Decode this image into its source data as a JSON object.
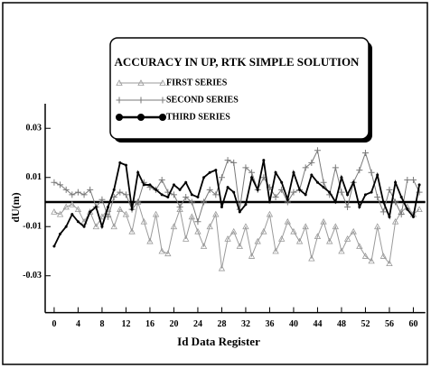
{
  "chart_data": {
    "type": "line",
    "title": "ACCURACY IN UP, RTK SIMPLE SOLUTION",
    "x_label": "Id Data Register",
    "y_label": "dU(m)",
    "x": [
      0,
      1,
      2,
      3,
      4,
      5,
      6,
      7,
      8,
      9,
      10,
      11,
      12,
      13,
      14,
      15,
      16,
      17,
      18,
      19,
      20,
      21,
      22,
      23,
      24,
      25,
      26,
      27,
      28,
      29,
      30,
      31,
      32,
      33,
      34,
      35,
      36,
      37,
      38,
      39,
      40,
      41,
      42,
      43,
      44,
      45,
      46,
      47,
      48,
      49,
      50,
      51,
      52,
      53,
      54,
      55,
      56,
      57,
      58,
      59,
      60,
      61
    ],
    "xlim": [
      -1.5,
      62
    ],
    "xticks": [
      0,
      4,
      8,
      12,
      16,
      20,
      24,
      28,
      32,
      36,
      40,
      44,
      48,
      52,
      56,
      60
    ],
    "ylim": [
      -0.045,
      0.04
    ],
    "yticks": [
      0.03,
      0.01,
      -0.01,
      -0.03
    ],
    "zero_line": true,
    "series": [
      {
        "name": "FIRST SERIES",
        "color": "#9a9a9a",
        "marker": "triangle",
        "values": [
          -0.004,
          -0.005,
          -0.002,
          -0.001,
          -0.003,
          -0.008,
          -0.004,
          -0.01,
          -0.006,
          -0.003,
          -0.01,
          -0.003,
          -0.005,
          -0.012,
          0.0,
          -0.008,
          -0.016,
          -0.005,
          -0.02,
          -0.021,
          -0.01,
          -0.003,
          -0.015,
          -0.006,
          -0.012,
          -0.018,
          -0.01,
          -0.005,
          -0.027,
          -0.015,
          -0.012,
          -0.018,
          -0.01,
          -0.022,
          -0.016,
          -0.012,
          -0.005,
          -0.02,
          -0.015,
          -0.008,
          -0.012,
          -0.016,
          -0.01,
          -0.023,
          -0.014,
          -0.008,
          -0.016,
          -0.01,
          -0.02,
          -0.015,
          -0.012,
          -0.018,
          -0.022,
          -0.024,
          -0.01,
          -0.022,
          -0.025,
          -0.008,
          -0.004,
          -0.002,
          -0.005,
          -0.003
        ]
      },
      {
        "name": "SECOND SERIES",
        "color": "#7a7a7a",
        "marker": "plus",
        "values": [
          0.008,
          0.007,
          0.005,
          0.003,
          0.004,
          0.003,
          0.005,
          -0.002,
          0.001,
          -0.006,
          0.002,
          0.004,
          0.003,
          -0.003,
          0.0,
          0.008,
          0.006,
          0.005,
          0.009,
          0.004,
          0.003,
          -0.002,
          0.002,
          0.0,
          -0.008,
          0.0,
          0.005,
          0.003,
          0.01,
          0.017,
          0.016,
          -0.003,
          0.014,
          0.012,
          0.005,
          0.01,
          0.006,
          0.002,
          0.005,
          0.0,
          0.004,
          0.005,
          0.014,
          0.016,
          0.021,
          0.008,
          0.003,
          0.014,
          0.004,
          -0.002,
          0.008,
          0.013,
          0.02,
          0.012,
          0.002,
          -0.004,
          0.005,
          0.0,
          -0.005,
          0.009,
          0.009,
          0.004
        ]
      },
      {
        "name": "THIRD SERIES",
        "color": "#000000",
        "marker": "circle",
        "values": [
          -0.018,
          -0.013,
          -0.01,
          -0.005,
          -0.008,
          -0.01,
          -0.004,
          -0.002,
          -0.01,
          -0.002,
          0.005,
          0.016,
          0.015,
          -0.003,
          0.012,
          0.007,
          0.007,
          0.005,
          0.003,
          0.002,
          0.007,
          0.005,
          0.008,
          0.003,
          0.002,
          0.01,
          0.012,
          0.013,
          -0.002,
          0.006,
          0.004,
          -0.004,
          -0.001,
          0.01,
          0.005,
          0.017,
          0.0,
          0.012,
          0.008,
          0.001,
          0.012,
          0.005,
          0.003,
          0.011,
          0.008,
          0.006,
          0.004,
          0.0,
          0.01,
          0.003,
          0.008,
          -0.002,
          0.003,
          0.004,
          0.011,
          0.0,
          -0.006,
          0.008,
          0.002,
          -0.003,
          -0.006,
          0.007
        ]
      }
    ]
  }
}
